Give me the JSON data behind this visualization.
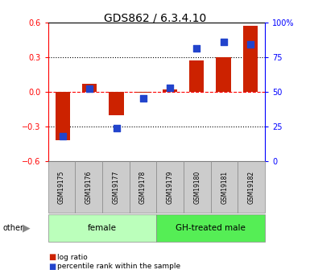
{
  "title": "GDS862 / 6.3.4.10",
  "samples": [
    "GSM19175",
    "GSM19176",
    "GSM19177",
    "GSM19178",
    "GSM19179",
    "GSM19180",
    "GSM19181",
    "GSM19182"
  ],
  "log_ratio": [
    -0.42,
    0.07,
    -0.2,
    -0.01,
    0.02,
    0.27,
    0.3,
    0.57
  ],
  "percentile_rank": [
    18,
    52,
    24,
    45,
    53,
    81,
    86,
    84
  ],
  "groups": [
    {
      "label": "female",
      "start": 0,
      "end": 4,
      "color": "#bbffbb"
    },
    {
      "label": "GH-treated male",
      "start": 4,
      "end": 8,
      "color": "#55ee55"
    }
  ],
  "ylim_left": [
    -0.6,
    0.6
  ],
  "ylim_right": [
    0,
    100
  ],
  "yticks_left": [
    -0.6,
    -0.3,
    0,
    0.3,
    0.6
  ],
  "yticks_right": [
    0,
    25,
    50,
    75,
    100
  ],
  "ytick_labels_right": [
    "0",
    "25",
    "50",
    "75",
    "100%"
  ],
  "hlines_dotted": [
    -0.3,
    0.3
  ],
  "hline_dashed": 0.0,
  "bar_color": "#cc2200",
  "dot_color": "#2244cc",
  "bar_width": 0.55,
  "dot_size": 28,
  "background_color": "#ffffff",
  "legend_log_ratio": "log ratio",
  "legend_percentile": "percentile rank within the sample"
}
